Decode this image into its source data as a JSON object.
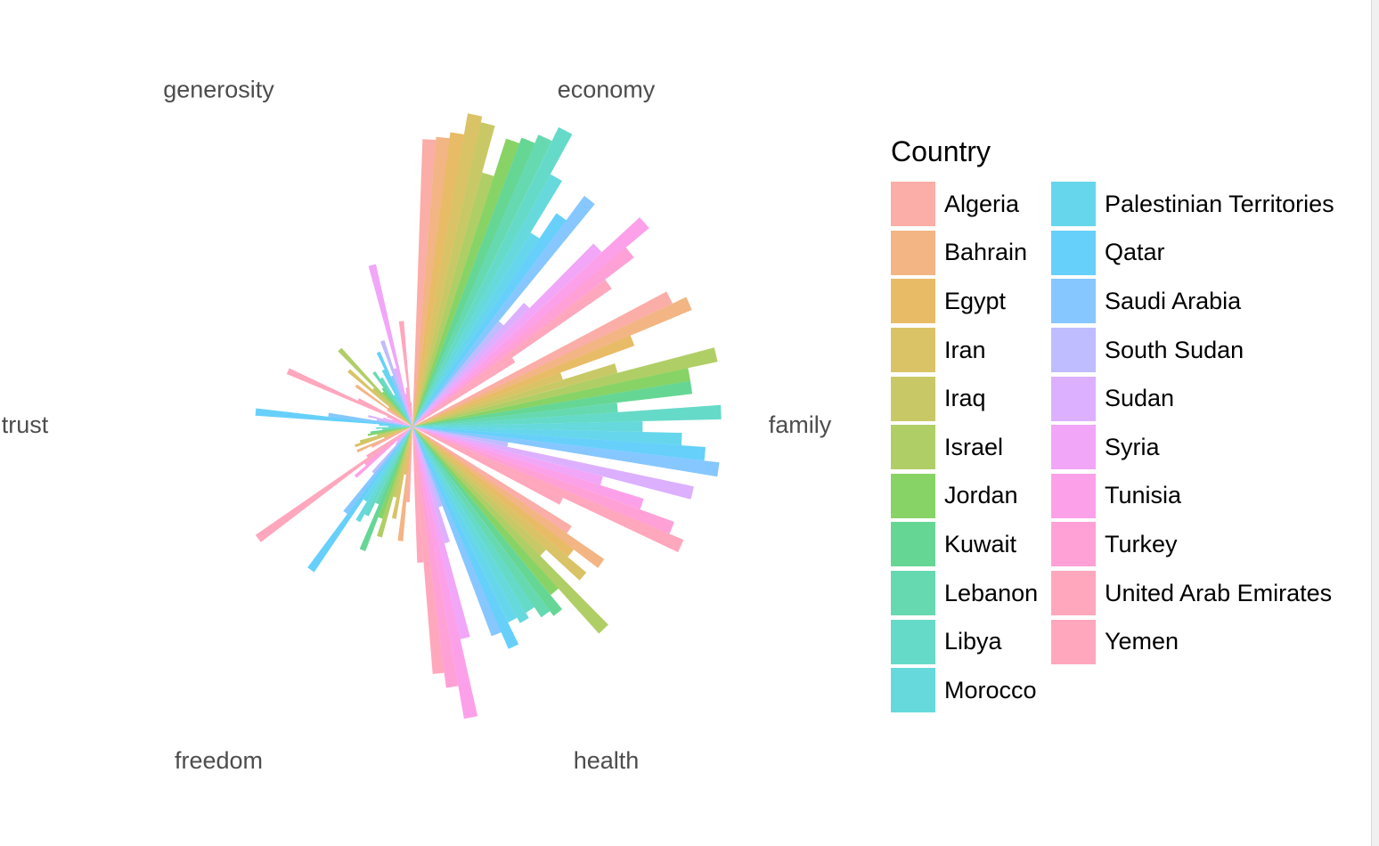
{
  "chart_data": {
    "type": "bar",
    "coord": "polar",
    "axes": [
      "economy",
      "family",
      "health",
      "freedom",
      "trust",
      "generosity"
    ],
    "legend_title": "Country",
    "legend_position": "right",
    "grid": false,
    "series": [
      {
        "name": "Algeria",
        "color": "#F8766D",
        "values": [
          0.95,
          0.95,
          0.62,
          0.25,
          0.15,
          0.1
        ]
      },
      {
        "name": "Bahrain",
        "color": "#EA8331",
        "values": [
          0.96,
          1.0,
          0.77,
          0.38,
          0.2,
          0.23
        ]
      },
      {
        "name": "Egypt",
        "color": "#D89000",
        "values": [
          0.98,
          0.78,
          0.67,
          0.16,
          0.1,
          0.1
        ]
      },
      {
        "name": "Iran",
        "color": "#C09B00",
        "values": [
          1.05,
          0.52,
          0.75,
          0.31,
          0.2,
          0.28
        ]
      },
      {
        "name": "Iraq",
        "color": "#A3A500",
        "values": [
          1.03,
          0.7,
          0.6,
          0.24,
          0.18,
          0.18
        ]
      },
      {
        "name": "Israel",
        "color": "#7CAE00",
        "values": [
          0.87,
          1.03,
          0.92,
          0.38,
          0.12,
          0.35
        ]
      },
      {
        "name": "Jordan",
        "color": "#39B600",
        "values": [
          1.0,
          0.93,
          0.72,
          0.32,
          0.15,
          0.15
        ]
      },
      {
        "name": "Kuwait",
        "color": "#00BB4E",
        "values": [
          1.02,
          0.93,
          0.78,
          0.44,
          0.14,
          0.16
        ]
      },
      {
        "name": "Lebanon",
        "color": "#00BF7D",
        "values": [
          1.05,
          0.68,
          0.76,
          0.28,
          0.1,
          0.22
        ]
      },
      {
        "name": "Libya",
        "color": "#00C1A3",
        "values": [
          1.1,
          1.02,
          0.72,
          0.33,
          0.12,
          0.19
        ]
      },
      {
        "name": "Morocco",
        "color": "#00BFC4",
        "values": [
          0.95,
          0.76,
          0.74,
          0.36,
          0.08,
          0.12
        ]
      },
      {
        "name": "Palestinian Territories",
        "color": "#00BAE0",
        "values": [
          0.75,
          0.89,
          0.72,
          0.29,
          0.11,
          0.21
        ]
      },
      {
        "name": "Qatar",
        "color": "#00B0F6",
        "values": [
          0.85,
          0.97,
          0.8,
          0.58,
          0.52,
          0.27
        ]
      },
      {
        "name": "Saudi Arabia",
        "color": "#35A2FF",
        "values": [
          0.95,
          1.02,
          0.74,
          0.36,
          0.28,
          0.18
        ]
      },
      {
        "name": "South Sudan",
        "color": "#9590FF",
        "values": [
          0.45,
          0.32,
          0.28,
          0.2,
          0.12,
          0.3
        ]
      },
      {
        "name": "Sudan",
        "color": "#C77CFF",
        "values": [
          0.55,
          0.95,
          0.4,
          0.08,
          0.15,
          0.2
        ]
      },
      {
        "name": "Syria",
        "color": "#E76BF3",
        "values": [
          0.85,
          0.65,
          0.72,
          0.07,
          0.1,
          0.55
        ]
      },
      {
        "name": "Tunisia",
        "color": "#FA62DB",
        "values": [
          1.02,
          0.8,
          0.98,
          0.25,
          0.07,
          0.11
        ]
      },
      {
        "name": "Turkey",
        "color": "#FF62BC",
        "values": [
          0.92,
          0.92,
          0.87,
          0.2,
          0.09,
          0.13
        ]
      },
      {
        "name": "United Arab Emirates",
        "color": "#FF6C91",
        "values": [
          0.8,
          0.97,
          0.82,
          0.63,
          0.45,
          0.35
        ]
      },
      {
        "name": "Yemen",
        "color": "#FF6C91",
        "values": [
          0.4,
          0.55,
          0.45,
          0.18,
          0.2,
          0.08
        ]
      }
    ]
  }
}
